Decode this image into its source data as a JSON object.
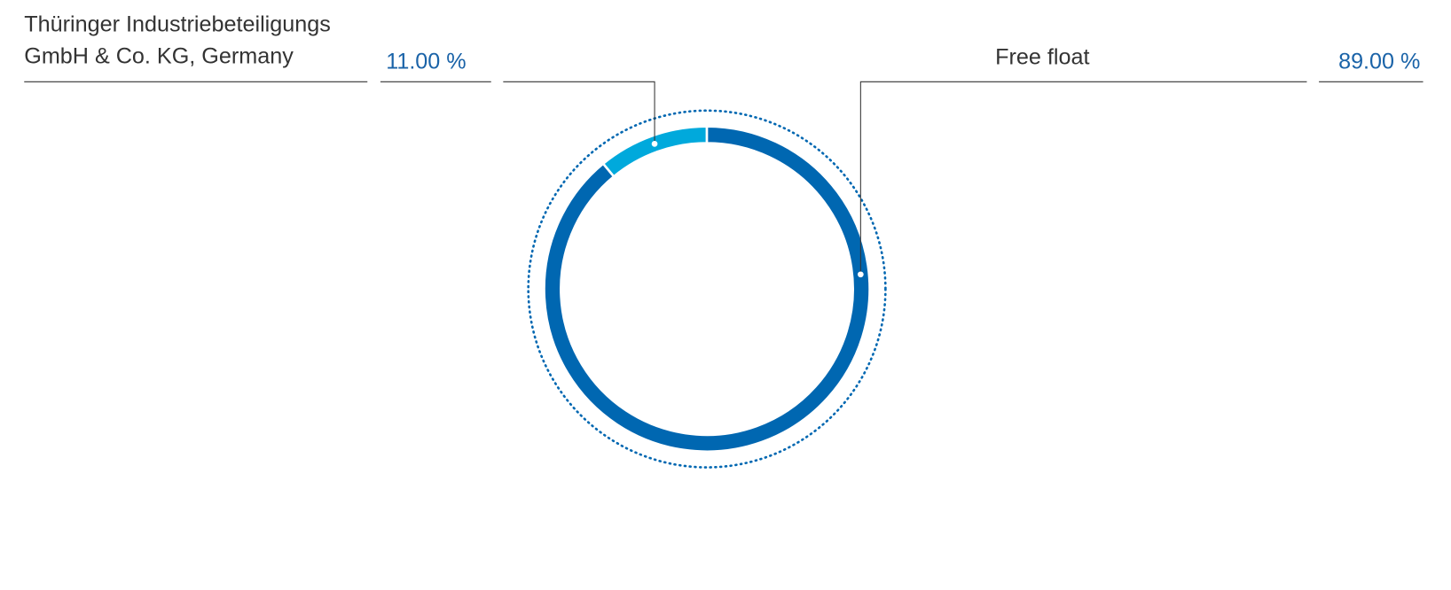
{
  "chart_data": {
    "type": "donut",
    "categories": [
      "Thüringer Industriebeteiligungs GmbH & Co. KG, Germany",
      "Free float"
    ],
    "values": [
      11,
      89
    ],
    "value_labels": [
      "11.00 %",
      "89.00 %"
    ],
    "colors": [
      "#00a9dc",
      "#0067b1"
    ]
  }
}
